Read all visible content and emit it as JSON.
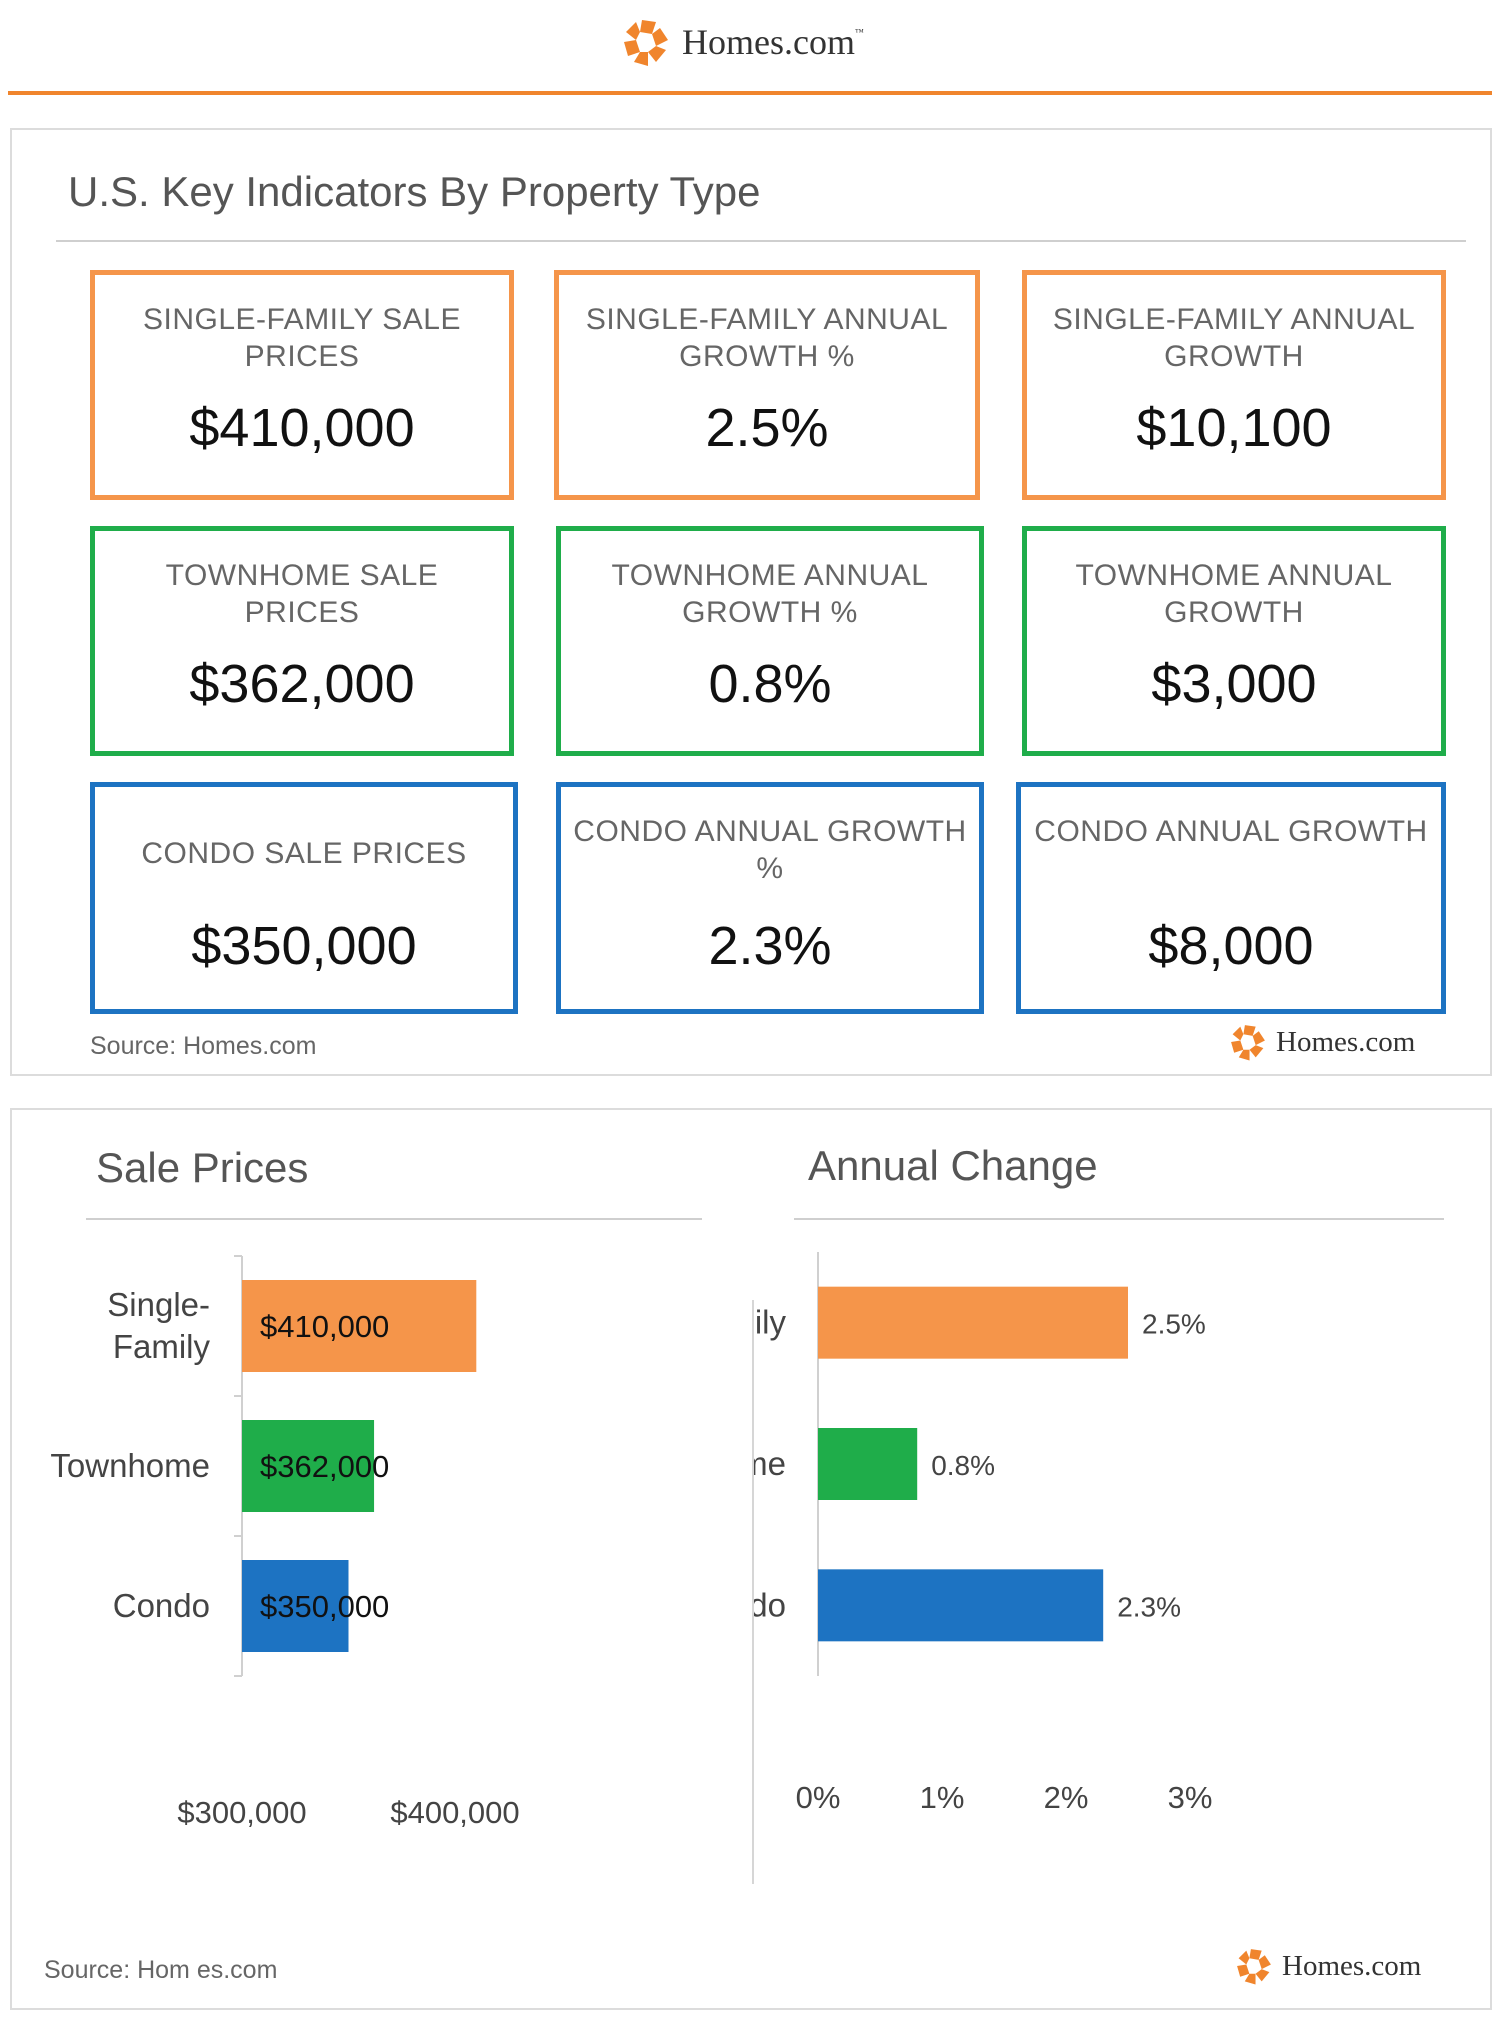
{
  "brand": {
    "name": "Homes.com",
    "tm": "™",
    "color": "#f0852d"
  },
  "kpi_panel": {
    "title": "U.S. Key Indicators By Property Type",
    "cards": [
      {
        "label": "SINGLE-FAMILY SALE PRICES",
        "value": "$410,000",
        "color": "#f5954a"
      },
      {
        "label": "SINGLE-FAMILY ANNUAL GROWTH %",
        "value": "2.5%",
        "color": "#f5954a"
      },
      {
        "label": "SINGLE-FAMILY ANNUAL GROWTH",
        "value": "$10,100",
        "color": "#f5954a"
      },
      {
        "label": "TOWNHOME SALE PRICES",
        "value": "$362,000",
        "color": "#1fad4a"
      },
      {
        "label": "TOWNHOME ANNUAL GROWTH %",
        "value": "0.8%",
        "color": "#1fad4a"
      },
      {
        "label": "TOWNHOME ANNUAL GROWTH",
        "value": "$3,000",
        "color": "#1fad4a"
      },
      {
        "label": "CONDO SALE PRICES",
        "value": "$350,000",
        "color": "#1d73c2"
      },
      {
        "label": "CONDO ANNUAL GROWTH %",
        "value": "2.3%",
        "color": "#1d73c2"
      },
      {
        "label": "CONDO ANNUAL GROWTH",
        "value": "$8,000",
        "color": "#1d73c2"
      }
    ],
    "source": "Source: Homes.com"
  },
  "charts_panel": {
    "source": "Source: Hom es.com"
  },
  "chart_data": [
    {
      "type": "bar",
      "orientation": "horizontal",
      "title": "Sale Prices",
      "categories": [
        "Single-Family",
        "Townhome",
        "Condo"
      ],
      "category_labels": [
        [
          "Single-",
          "Family"
        ],
        [
          "Townhome"
        ],
        [
          "Condo"
        ]
      ],
      "values": [
        410000,
        362000,
        350000
      ],
      "data_labels": [
        "$410,000",
        "$362,000",
        "$350,000"
      ],
      "colors": [
        "#f5954a",
        "#1fad4a",
        "#1d73c2"
      ],
      "xlim": [
        300000,
        400000
      ],
      "xticks": [
        300000,
        400000
      ],
      "xtick_labels": [
        "$300,000",
        "$400,000"
      ],
      "grid": false,
      "legend": "none"
    },
    {
      "type": "bar",
      "orientation": "horizontal",
      "title": "Annual Change",
      "categories": [
        "Single-Family",
        "Townhome",
        "Condo"
      ],
      "category_labels": [
        [
          "Single-Family"
        ],
        [
          "Townhome"
        ],
        [
          "Condo"
        ]
      ],
      "values": [
        2.5,
        0.8,
        2.3
      ],
      "data_labels": [
        "2.5%",
        "0.8%",
        "2.3%"
      ],
      "colors": [
        "#f5954a",
        "#1fad4a",
        "#1d73c2"
      ],
      "xlim": [
        0,
        3
      ],
      "xticks": [
        0,
        1,
        2,
        3
      ],
      "xtick_labels": [
        "0%",
        "1%",
        "2%",
        "3%"
      ],
      "grid": false,
      "legend": "none"
    }
  ]
}
